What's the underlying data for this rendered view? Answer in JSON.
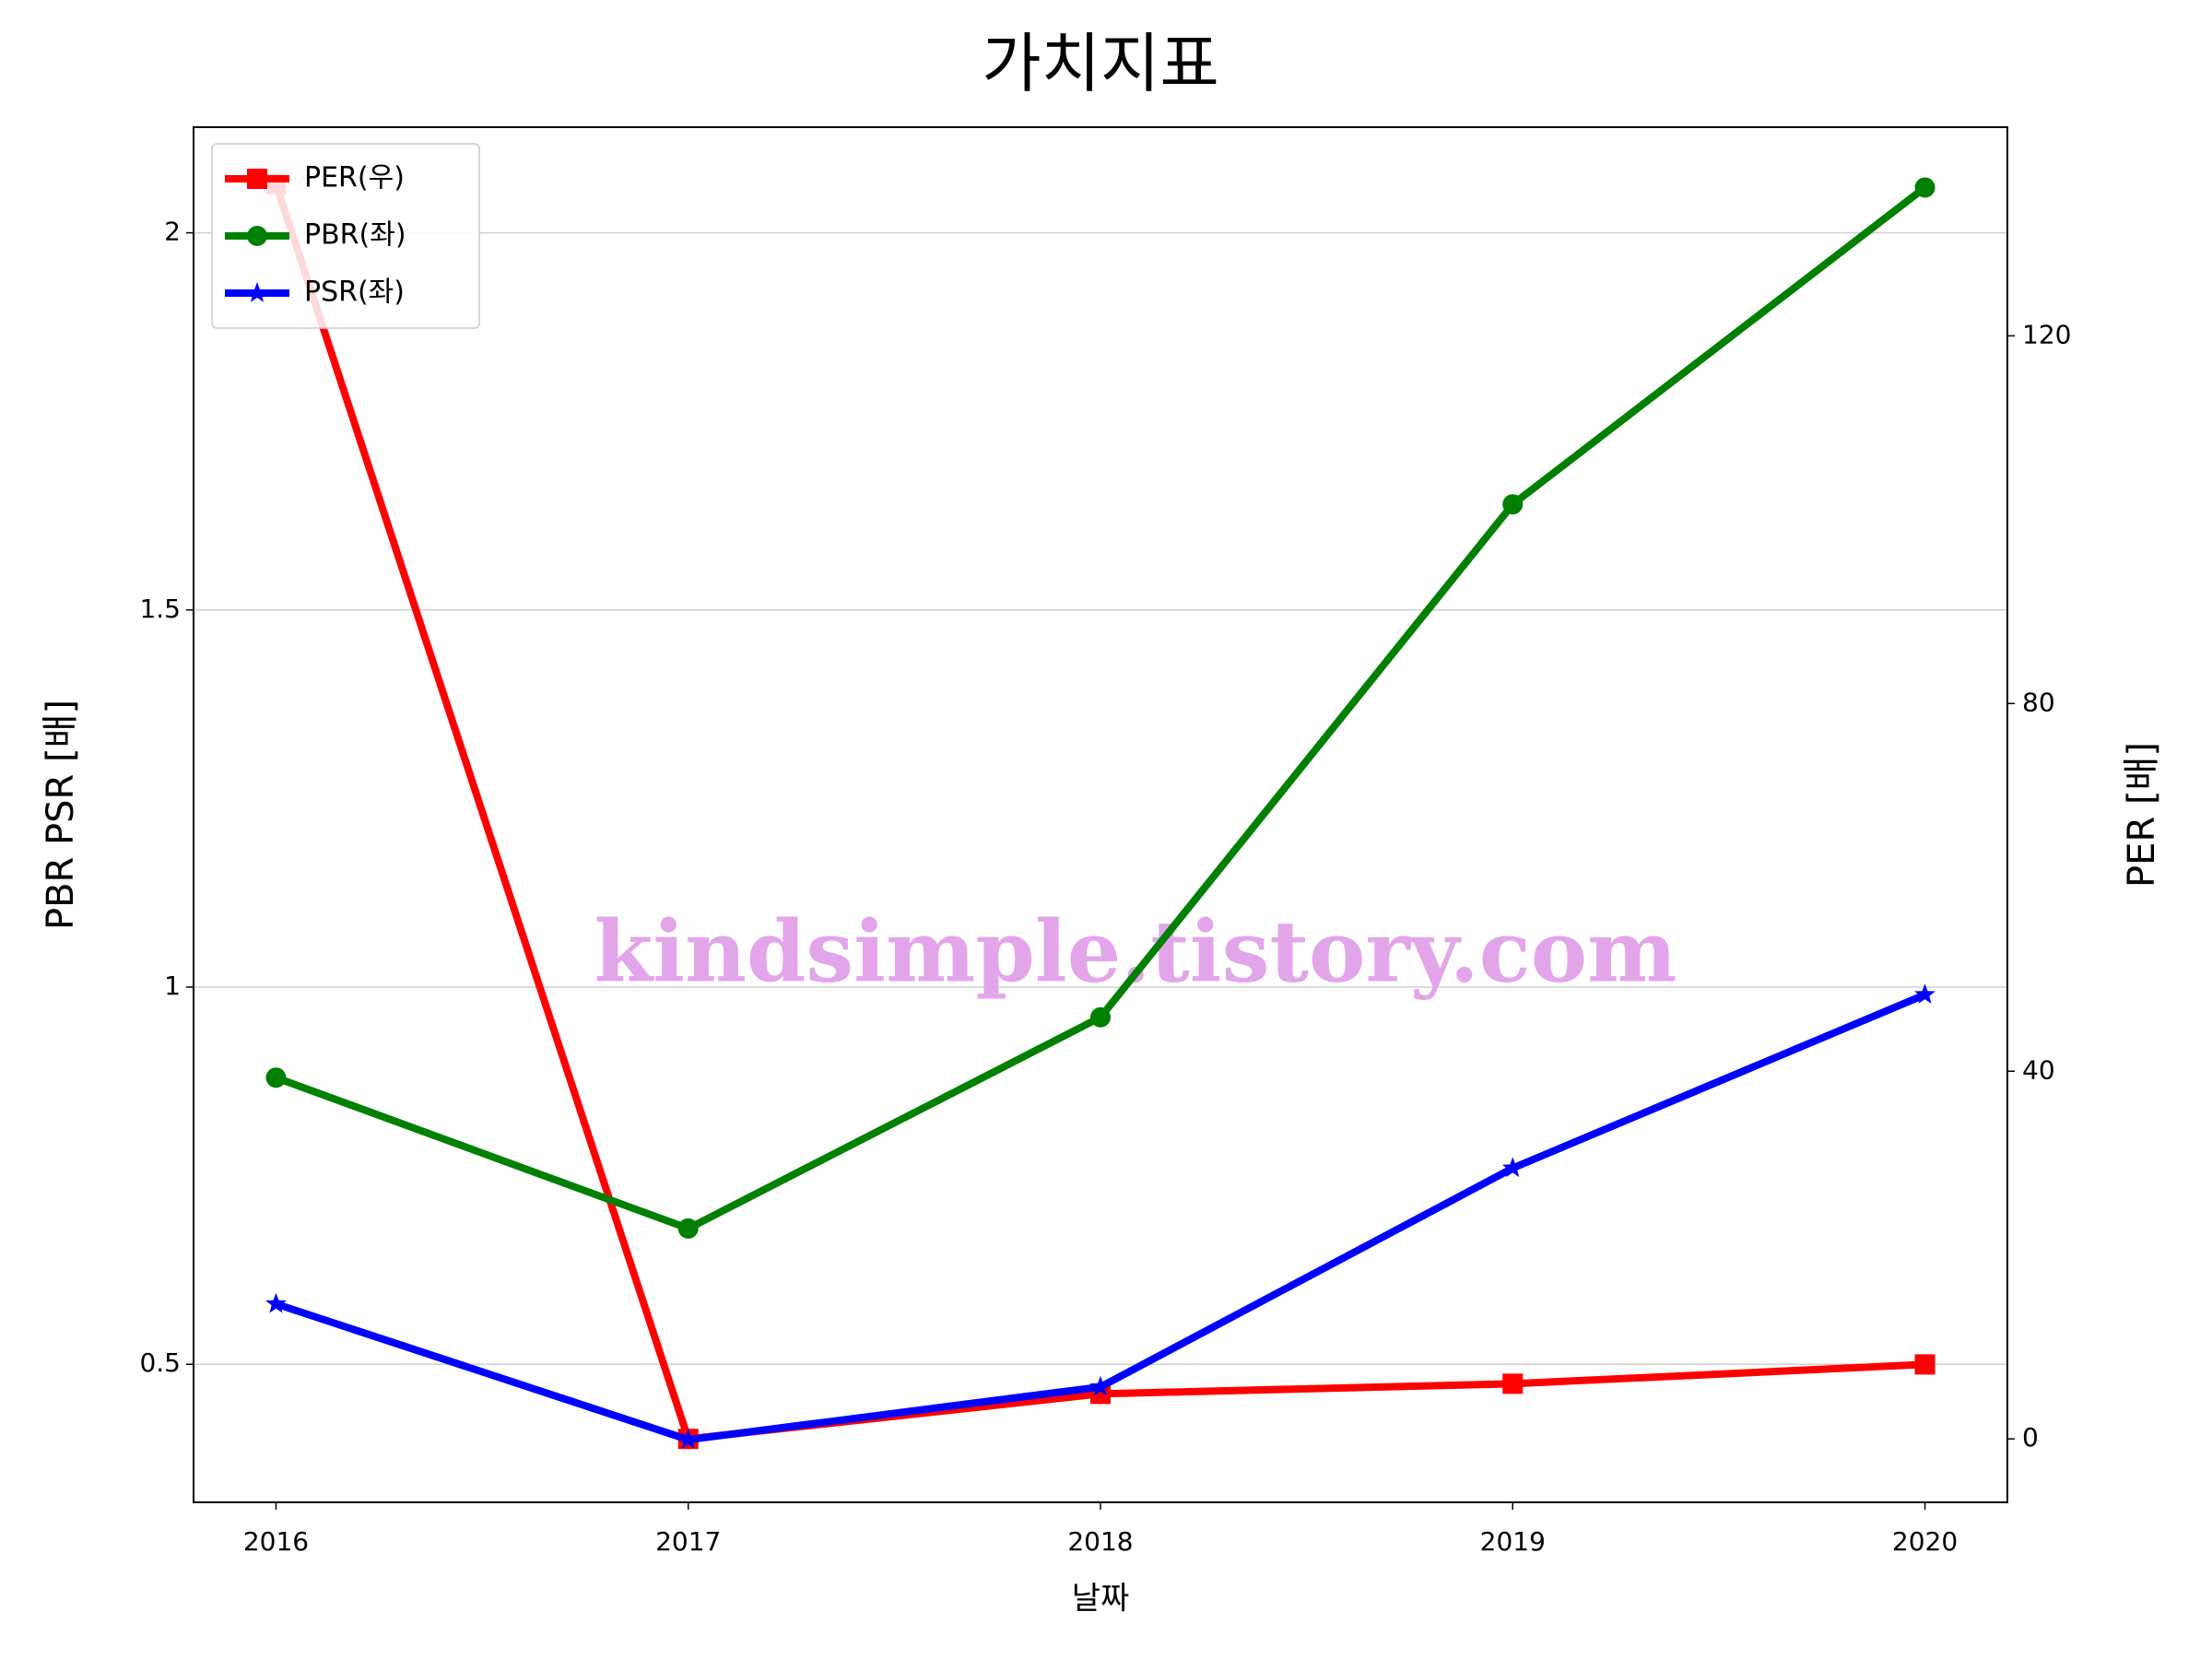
{
  "chart_data": {
    "type": "line",
    "title": "가치지표",
    "x_label": "날짜",
    "y_label": "PBR PSR [배]",
    "y2_label": "PER [배]",
    "watermark": "kindsimple.tistory.com",
    "x": [
      2016,
      2017,
      2018,
      2019,
      2020
    ],
    "xlim": [
      2015.8,
      2020.2
    ],
    "xticks": [
      2016,
      2017,
      2018,
      2019,
      2020
    ],
    "ylim": [
      0.317,
      2.14
    ],
    "yticks": [
      0.5,
      1.0,
      1.5,
      2.0
    ],
    "y2lim": [
      -6.9,
      142.7
    ],
    "y2ticks": [
      0,
      40,
      80,
      120
    ],
    "grid": true,
    "legend": "upper left",
    "y_label_color": "#008000",
    "y2_label_color": "#ff0000",
    "series": [
      {
        "name": "PER(우)",
        "color": "#ff0000",
        "marker": "square",
        "axis": "y2",
        "values": [
          136.5,
          0,
          4.9,
          6.0,
          8.1
        ]
      },
      {
        "name": "PBR(좌)",
        "color": "#008000",
        "marker": "circle",
        "values": [
          0.88,
          0.68,
          0.96,
          1.64,
          2.06
        ]
      },
      {
        "name": "PSR(좌)",
        "color": "#0000ff",
        "marker": "star",
        "values": [
          0.58,
          0.4,
          0.47,
          0.76,
          0.99
        ]
      }
    ]
  }
}
